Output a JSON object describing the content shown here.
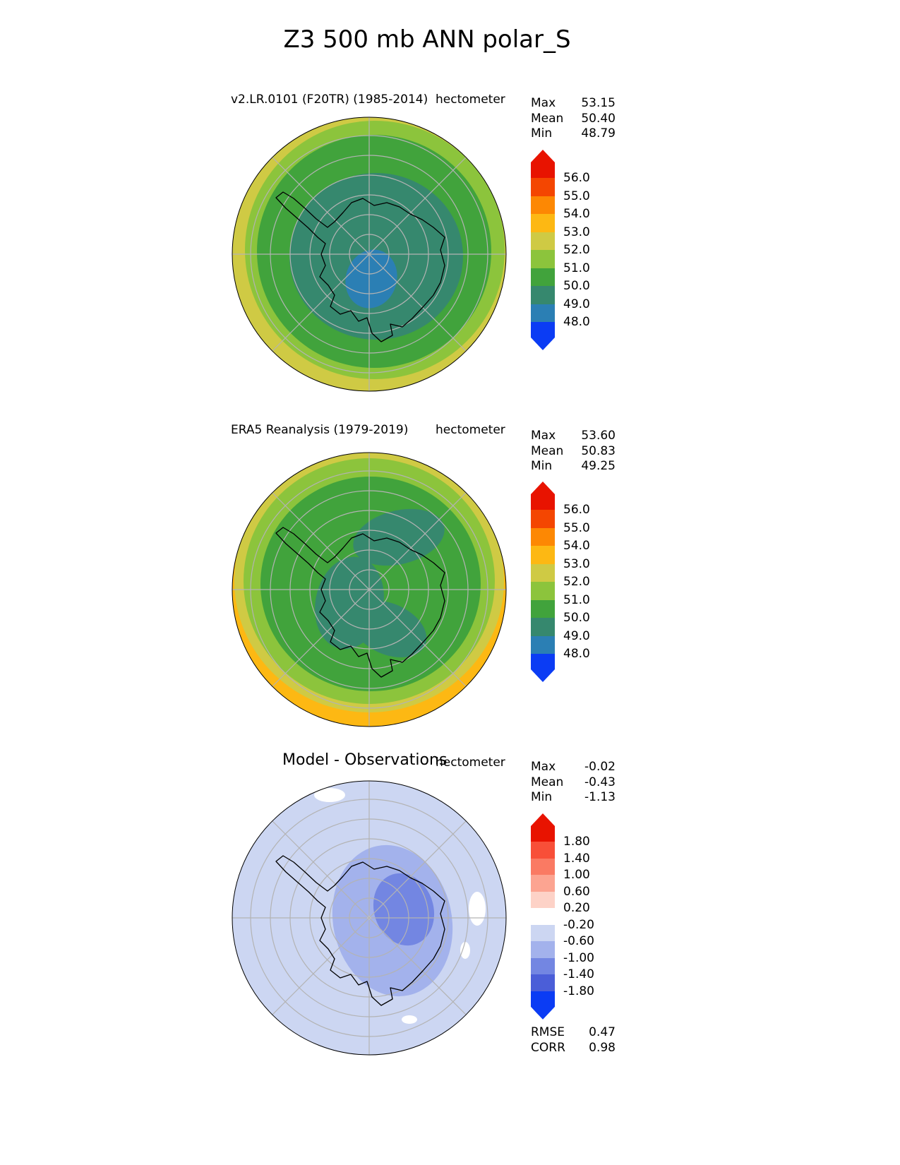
{
  "figure": {
    "title": "Z3 500 mb ANN polar_S",
    "background_color": "#ffffff"
  },
  "panels": [
    {
      "subtitle": "v2.LR.0101 (F20TR) (1985-2014)",
      "units": "hectometer",
      "stats": [
        {
          "label": "Max",
          "value": "53.15"
        },
        {
          "label": "Mean",
          "value": "50.40"
        },
        {
          "label": "Min",
          "value": "48.79"
        }
      ]
    },
    {
      "subtitle": "ERA5 Reanalysis (1979-2019)",
      "units": "hectometer",
      "stats": [
        {
          "label": "Max",
          "value": "53.60"
        },
        {
          "label": "Mean",
          "value": "50.83"
        },
        {
          "label": "Min",
          "value": "49.25"
        }
      ]
    },
    {
      "subtitle": "Model - Observations",
      "units": "hectometer",
      "stats": [
        {
          "label": "Max",
          "value": "-0.02"
        },
        {
          "label": "Mean",
          "value": "-0.43"
        },
        {
          "label": "Min",
          "value": "-1.13"
        }
      ],
      "metrics": [
        {
          "label": "RMSE",
          "value": "0.47"
        },
        {
          "label": "CORR",
          "value": "0.98"
        }
      ]
    }
  ],
  "chart_data": [
    {
      "type": "heatmap",
      "subtype": "polar-stereographic-contour-map",
      "variable": "Z3 500 mb",
      "season": "ANN",
      "region": "polar_S (Antarctica)",
      "title": "v2.LR.0101 (F20TR) (1985-2014)",
      "units": "hectometer",
      "stats": {
        "max": 53.15,
        "mean": 50.4,
        "min": 48.79
      },
      "colorbar": {
        "orientation": "vertical",
        "position": "right",
        "extend": "both",
        "tick_labels": [
          "56.0",
          "55.0",
          "54.0",
          "53.0",
          "52.0",
          "51.0",
          "50.0",
          "49.0",
          "48.0"
        ],
        "segment_colors": [
          "#f44601",
          "#fd8803",
          "#fdb813",
          "#cfca44",
          "#8cc43c",
          "#41a33c",
          "#36886e",
          "#2b7fb4"
        ],
        "extend_high_color": "#e81300",
        "extend_low_color": "#0b3cf4"
      },
      "map_features": {
        "graticule_color": "#b3b3b3",
        "coastline_color": "#000000",
        "bands_visible_low_to_high": [
          "48-49 blue patch near pole",
          "49-50 sea-green interior",
          "50-51 green ring",
          "51-52 yellow-green ring",
          "52-53 yellow outer ring"
        ]
      }
    },
    {
      "type": "heatmap",
      "subtype": "polar-stereographic-contour-map",
      "variable": "Z3 500 mb",
      "season": "ANN",
      "region": "polar_S (Antarctica)",
      "title": "ERA5 Reanalysis (1979-2019)",
      "units": "hectometer",
      "stats": {
        "max": 53.6,
        "mean": 50.83,
        "min": 49.25
      },
      "colorbar": {
        "orientation": "vertical",
        "position": "right",
        "extend": "both",
        "tick_labels": [
          "56.0",
          "55.0",
          "54.0",
          "53.0",
          "52.0",
          "51.0",
          "50.0",
          "49.0",
          "48.0"
        ],
        "segment_colors": [
          "#f44601",
          "#fd8803",
          "#fdb813",
          "#cfca44",
          "#8cc43c",
          "#41a33c",
          "#36886e",
          "#2b7fb4"
        ],
        "extend_high_color": "#e81300",
        "extend_low_color": "#0b3cf4"
      },
      "map_features": {
        "graticule_color": "#b3b3b3",
        "coastline_color": "#000000",
        "bands_visible_low_to_high": [
          "49-50 sea-green patches around pole",
          "50-51 green interior",
          "51-52 yellow-green ring",
          "52-53 yellow outer ring",
          "53-54 orange sliver at lower edge"
        ]
      }
    },
    {
      "type": "heatmap",
      "subtype": "polar-stereographic-contour-map",
      "variable": "Z3 500 mb difference",
      "season": "ANN",
      "region": "polar_S (Antarctica)",
      "title": "Model - Observations",
      "units": "hectometer",
      "stats": {
        "max": -0.02,
        "mean": -0.43,
        "min": -1.13
      },
      "rmse": 0.47,
      "corr": 0.98,
      "colorbar": {
        "orientation": "vertical",
        "position": "right",
        "extend": "both",
        "tick_labels": [
          "1.80",
          "1.40",
          "1.00",
          "0.60",
          "0.20",
          "-0.20",
          "-0.60",
          "-1.00",
          "-1.40",
          "-1.80"
        ],
        "segment_colors": [
          "#f84f38",
          "#fa7a63",
          "#fca491",
          "#fdd2c7",
          "#ffffff",
          "#ccd6f2",
          "#a3b2ec",
          "#7386e2",
          "#4b5ed8"
        ],
        "extend_high_color": "#e81300",
        "extend_low_color": "#0b3cf4"
      },
      "map_features": {
        "graticule_color": "#b3b3b3",
        "coastline_color": "#000000",
        "bands_visible_low_to_high": [
          "-1.4 to -1.0 blue core right of pole",
          "-1.0 to -0.6 light-blue blob around pole",
          "-0.6 to -0.2 pale background",
          "-0.2 to 0.2 white patches near eastern edge"
        ]
      }
    }
  ]
}
